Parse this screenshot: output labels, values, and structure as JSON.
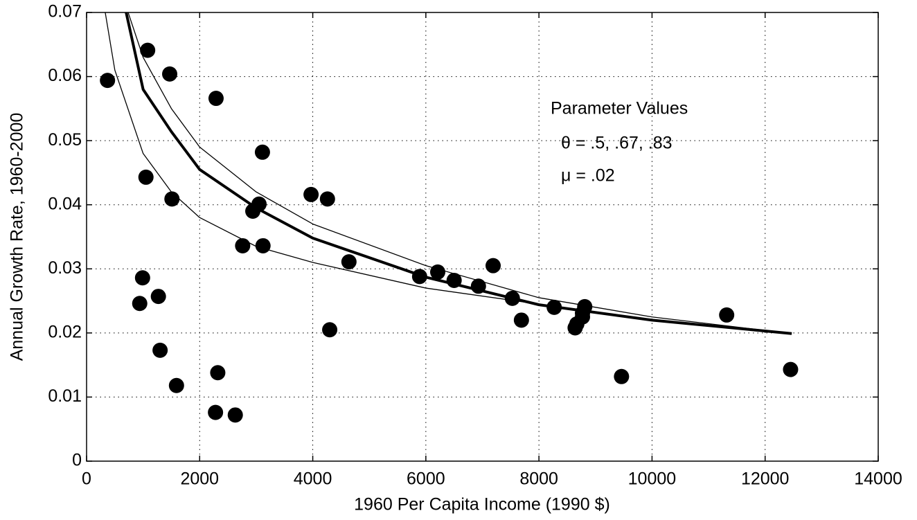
{
  "chart_data": {
    "type": "scatter",
    "x_label": "1960 Per Capita Income (1990 $)",
    "y_label": "Annual Growth Rate, 1960-2000",
    "annotations": [
      "Parameter Values",
      "θ = .5, .67, .83",
      "μ = .02"
    ],
    "xlim": [
      0,
      14000
    ],
    "ylim": [
      0,
      0.07
    ],
    "xticks": [
      0,
      2000,
      4000,
      6000,
      8000,
      10000,
      12000,
      14000
    ],
    "yticks": [
      0,
      0.01,
      0.02,
      0.03,
      0.04,
      0.05,
      0.06,
      0.07
    ],
    "grid": true,
    "series": [
      {
        "type": "scatter",
        "color": "#000000",
        "x": [
          370,
          1080,
          1470,
          2290,
          1050,
          1510,
          3110,
          3050,
          2940,
          2760,
          3120,
          3970,
          4260,
          4640,
          4300,
          990,
          940,
          1270,
          1300,
          1590,
          2320,
          2280,
          2630,
          5890,
          6210,
          6500,
          6930,
          7190,
          7530,
          7690,
          8270,
          8640,
          8670,
          8770,
          8810,
          8770,
          9460,
          11320,
          12450
        ],
        "values": [
          0.0594,
          0.0641,
          0.0604,
          0.0566,
          0.0443,
          0.0409,
          0.0482,
          0.0401,
          0.039,
          0.0336,
          0.0336,
          0.0416,
          0.0409,
          0.0311,
          0.0205,
          0.0286,
          0.0246,
          0.0257,
          0.0173,
          0.0118,
          0.0138,
          0.0076,
          0.0072,
          0.0288,
          0.0295,
          0.0282,
          0.0273,
          0.0305,
          0.0254,
          0.022,
          0.024,
          0.0208,
          0.0214,
          0.0225,
          0.0241,
          0.0231,
          0.0132,
          0.0228,
          0.0143
        ]
      },
      {
        "type": "line",
        "color": "#000000",
        "width": 4,
        "x": [
          700,
          1000,
          1500,
          2000,
          3000,
          4000,
          6000,
          8000,
          10000,
          12470
        ],
        "values": [
          0.07,
          0.058,
          0.0514,
          0.0455,
          0.0395,
          0.0348,
          0.0287,
          0.0244,
          0.022,
          0.0199
        ]
      },
      {
        "type": "line",
        "color": "#000000",
        "width": 1.3,
        "x": [
          735,
          1000,
          1500,
          2000,
          3000,
          4000,
          6000,
          8000,
          10000,
          12470
        ],
        "values": [
          0.07,
          0.063,
          0.055,
          0.049,
          0.042,
          0.037,
          0.0305,
          0.0255,
          0.0225,
          0.0199
        ]
      },
      {
        "type": "line",
        "color": "#000000",
        "width": 1.3,
        "x": [
          330,
          500,
          1000,
          1500,
          2000,
          3000,
          4000,
          6000,
          8000,
          10000,
          12470
        ],
        "values": [
          0.07,
          0.061,
          0.048,
          0.042,
          0.038,
          0.0335,
          0.031,
          0.027,
          0.0245,
          0.022,
          0.02
        ]
      }
    ]
  }
}
